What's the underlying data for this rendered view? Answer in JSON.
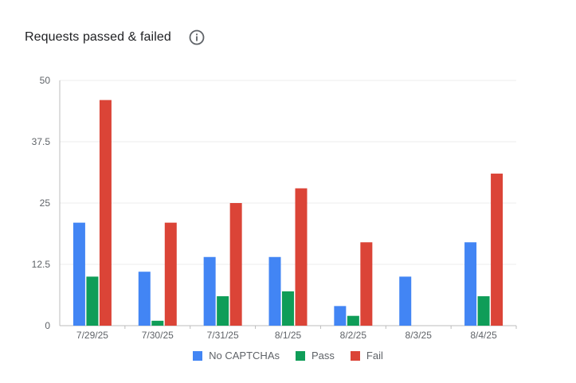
{
  "header": {
    "title": "Requests passed & failed",
    "info_icon": "info-icon"
  },
  "colors": {
    "no_captchas": "#4285f4",
    "pass": "#0f9d58",
    "fail": "#db4437",
    "grid": "#ececec",
    "axis": "#bdbdbd"
  },
  "chart_data": {
    "type": "bar",
    "title": "Requests passed & failed",
    "xlabel": "",
    "ylabel": "",
    "ylim": [
      0,
      50
    ],
    "yticks": [
      "0",
      "12.5",
      "25",
      "37.5",
      "50"
    ],
    "grid": true,
    "legend_position": "bottom",
    "categories": [
      "7/29/25",
      "7/30/25",
      "7/31/25",
      "8/1/25",
      "8/2/25",
      "8/3/25",
      "8/4/25"
    ],
    "series": [
      {
        "name": "No CAPTCHAs",
        "values": [
          21,
          11,
          14,
          14,
          4,
          10,
          17
        ]
      },
      {
        "name": "Pass",
        "values": [
          10,
          1,
          6,
          7,
          2,
          0,
          6
        ]
      },
      {
        "name": "Fail",
        "values": [
          46,
          21,
          25,
          28,
          17,
          0,
          31
        ]
      }
    ]
  }
}
